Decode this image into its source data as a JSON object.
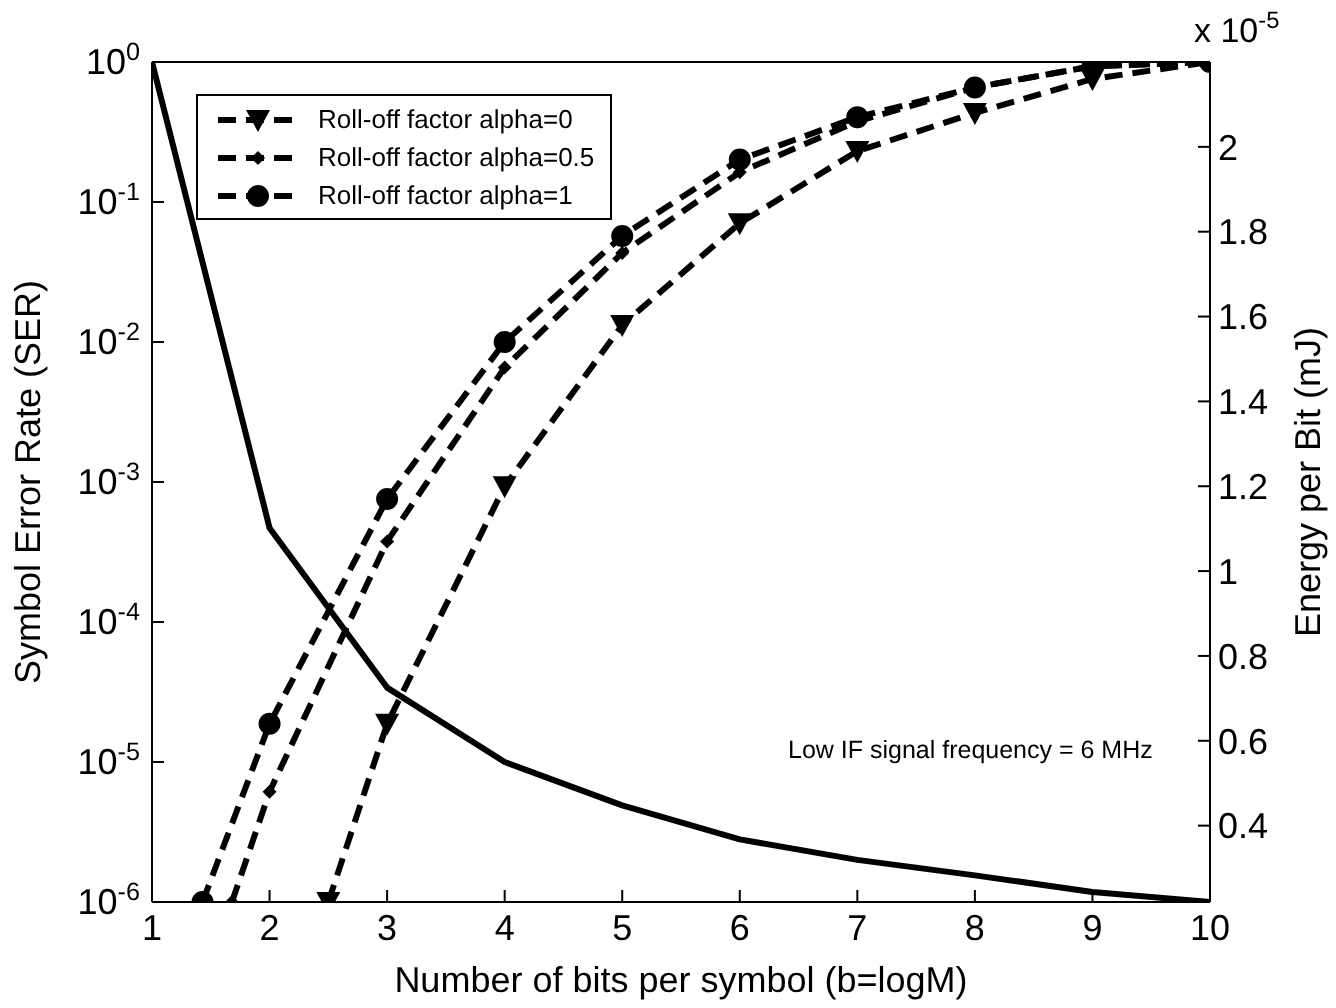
{
  "chart_data": {
    "type": "line",
    "xlabel": "Number of bits per symbol (b=logM)",
    "ylabel": "Symbol Error Rate (SER)",
    "y2label": "Energy per Bit (mJ)",
    "xlim": [
      1,
      10
    ],
    "xticks": [
      1,
      2,
      3,
      4,
      5,
      6,
      7,
      8,
      9,
      10
    ],
    "log": "y",
    "ylim": [
      1e-06,
      1
    ],
    "yticks": [
      {
        "value": 1e-06,
        "label": "10$^{-6}$"
      },
      {
        "value": 1e-05,
        "label": "10$^{-5}$"
      },
      {
        "value": 0.0001,
        "label": "10$^{-4}$"
      },
      {
        "value": 0.001,
        "label": "10$^{-3}$"
      },
      {
        "value": 0.01,
        "label": "10$^{-2}$"
      },
      {
        "value": 0.1,
        "label": "10$^{-1}$"
      },
      {
        "value": 1,
        "label": "10$^{0}$"
      }
    ],
    "y2lim": [
      0.22,
      2.2
    ],
    "y2ticks": [
      0.4,
      0.6,
      0.8,
      1,
      1.2,
      1.4,
      1.6,
      1.8,
      2
    ],
    "legend": "top left",
    "annotations": [
      "x 10$^{-5}$",
      "Low IF signal frequency = 6 MHz"
    ],
    "series": [
      {
        "color": "#000000",
        "marker": "none",
        "line_style": "solid",
        "x": [
          1,
          2,
          3,
          4,
          5,
          6,
          7,
          8,
          9,
          10
        ],
        "values": [
          1,
          0.00047,
          3.4e-05,
          1e-05,
          4.9e-06,
          2.8e-06,
          2e-06,
          1.55e-06,
          1.18e-06,
          1e-06
        ]
      },
      {
        "name": "Roll-off factor alpha=0",
        "axis": "y2",
        "color": "#000000",
        "marker": "triangle",
        "line_style": "dashed",
        "x": [
          2.5,
          3,
          4,
          5,
          6,
          7,
          8,
          9,
          10
        ],
        "values": [
          0.22,
          0.64,
          1.2,
          1.58,
          1.82,
          1.99,
          2.08,
          2.16,
          2.2
        ]
      },
      {
        "name": "Roll-off factor alpha=0.5",
        "axis": "y2",
        "color": "#000000",
        "marker": "diamond",
        "line_style": "dashed",
        "x": [
          1.68,
          2,
          3,
          4,
          5,
          6,
          7,
          8,
          9,
          10
        ],
        "values": [
          0.22,
          0.48,
          1.07,
          1.48,
          1.75,
          1.94,
          2.06,
          2.14,
          2.19,
          2.2
        ]
      },
      {
        "name": "Roll-off factor alpha=1",
        "axis": "y2",
        "color": "#000000",
        "marker": "circle",
        "line_style": "dashed",
        "x": [
          1.43,
          2,
          3,
          4,
          5,
          6,
          7,
          8,
          9,
          10
        ],
        "values": [
          0.22,
          0.64,
          1.17,
          1.54,
          1.79,
          1.97,
          2.07,
          2.14,
          2.19,
          2.2
        ]
      }
    ]
  }
}
